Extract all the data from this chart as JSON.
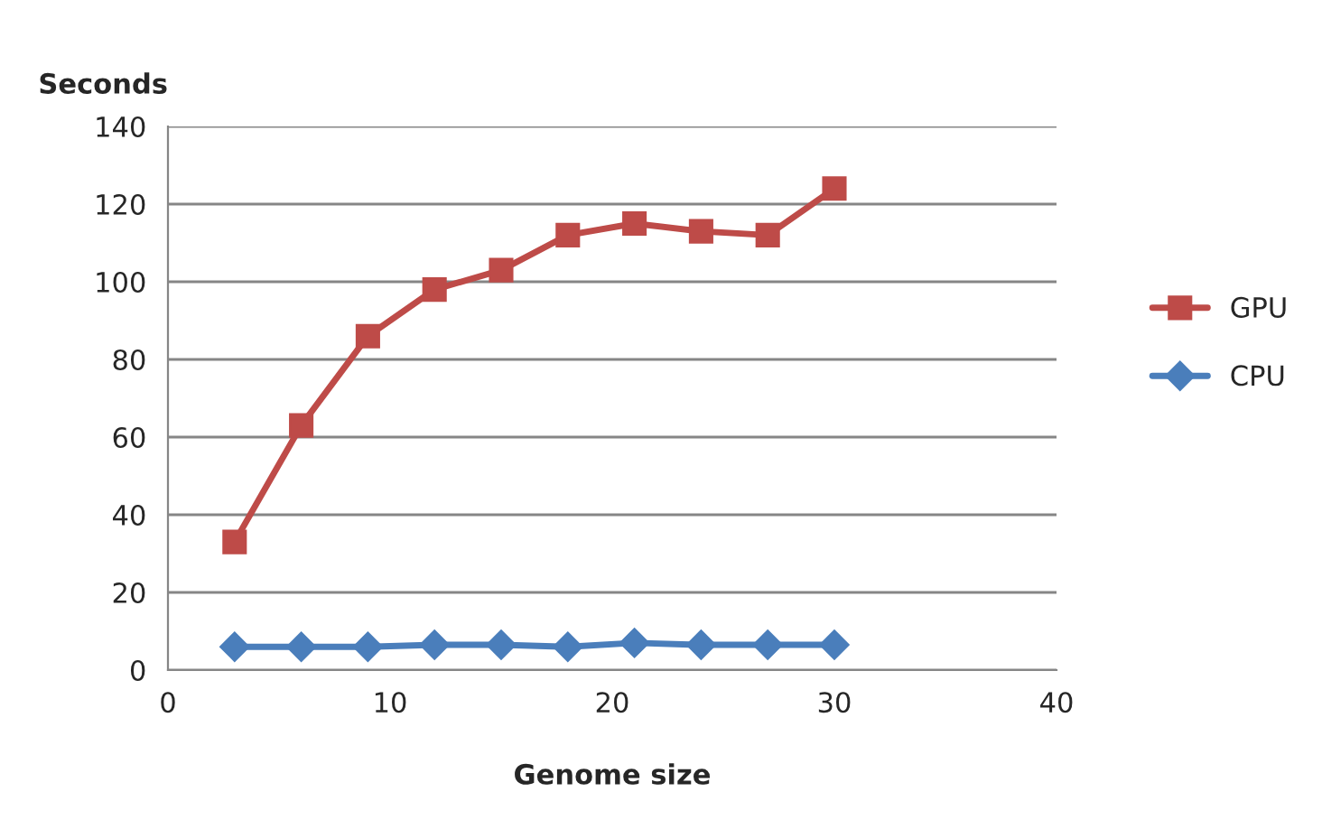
{
  "chart_data": {
    "type": "line",
    "ylabel": "Seconds",
    "xlabel": "Genome size",
    "x": [
      3,
      6,
      9,
      12,
      15,
      18,
      21,
      24,
      27,
      30
    ],
    "series": [
      {
        "name": "GPU",
        "color": "#be4b48",
        "marker": "square",
        "values": [
          33,
          63,
          86,
          98,
          103,
          112,
          115,
          113,
          112,
          124
        ]
      },
      {
        "name": "CPU",
        "color": "#4a7ebb",
        "marker": "diamond",
        "values": [
          6,
          6,
          6,
          6.5,
          6.5,
          6,
          7,
          6.5,
          6.5,
          6.5
        ]
      }
    ],
    "xlim": [
      0,
      40
    ],
    "xticks": [
      0,
      10,
      20,
      30,
      40
    ],
    "ylim": [
      0,
      140
    ],
    "yticks": [
      0,
      20,
      40,
      60,
      80,
      100,
      120,
      140
    ],
    "grid": "y",
    "legend": "right"
  }
}
